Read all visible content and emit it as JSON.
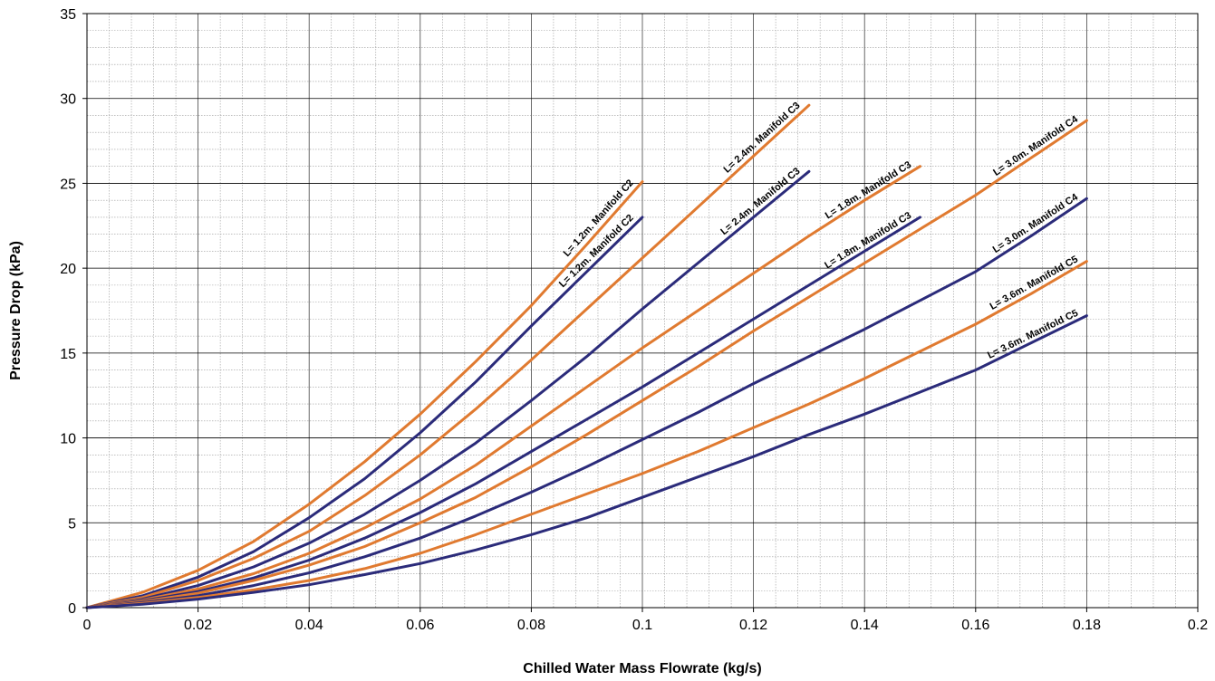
{
  "chart_data": {
    "type": "line",
    "title": "",
    "xlabel": "Chilled Water Mass Flowrate (kg/s)",
    "ylabel": "Pressure Drop (kPa)",
    "xlim": [
      0,
      0.2
    ],
    "ylim": [
      0,
      35
    ],
    "x_ticks": [
      "0",
      "0.02",
      "0.04",
      "0.06",
      "0.08",
      "0.1",
      "0.12",
      "0.14",
      "0.16",
      "0.18",
      "0.2"
    ],
    "y_ticks": [
      "0",
      "5",
      "10",
      "15",
      "20",
      "25",
      "30",
      "35"
    ],
    "grid": "major and minor",
    "legend": "none",
    "colors": {
      "orange": "#E07A30",
      "navy": "#2B2B7A"
    },
    "series": [
      {
        "name": "L= 1.2m. Manifold C2",
        "color": "#E07A30",
        "x": [
          0,
          0.01,
          0.02,
          0.03,
          0.04,
          0.05,
          0.06,
          0.07,
          0.08,
          0.09,
          0.1
        ],
        "y": [
          0,
          0.9,
          2.2,
          3.9,
          6.1,
          8.6,
          11.4,
          14.5,
          17.8,
          21.4,
          25.1
        ]
      },
      {
        "name": "L= 1.2m. Manifold C2",
        "color": "#2B2B7A",
        "x": [
          0,
          0.01,
          0.02,
          0.03,
          0.04,
          0.05,
          0.06,
          0.07,
          0.08,
          0.09,
          0.1
        ],
        "y": [
          0,
          0.7,
          1.8,
          3.3,
          5.3,
          7.6,
          10.3,
          13.3,
          16.6,
          19.8,
          23.0
        ]
      },
      {
        "name": "L= 2.4m. Manifold C3",
        "color": "#E07A30",
        "x": [
          0,
          0.01,
          0.02,
          0.03,
          0.04,
          0.05,
          0.06,
          0.07,
          0.08,
          0.09,
          0.1,
          0.11,
          0.12,
          0.13
        ],
        "y": [
          0,
          0.6,
          1.6,
          2.9,
          4.5,
          6.6,
          9.0,
          11.7,
          14.6,
          17.6,
          20.6,
          23.6,
          26.6,
          29.6
        ]
      },
      {
        "name": "L= 2.4m. Manifold C3",
        "color": "#2B2B7A",
        "x": [
          0,
          0.01,
          0.02,
          0.03,
          0.04,
          0.05,
          0.06,
          0.07,
          0.08,
          0.09,
          0.1,
          0.11,
          0.12,
          0.13
        ],
        "y": [
          0,
          0.5,
          1.3,
          2.4,
          3.8,
          5.5,
          7.5,
          9.7,
          12.2,
          14.8,
          17.6,
          20.3,
          23.0,
          25.7
        ]
      },
      {
        "name": "L= 1.8m. Manifold C3",
        "color": "#E07A30",
        "x": [
          0,
          0.01,
          0.02,
          0.03,
          0.04,
          0.05,
          0.06,
          0.07,
          0.08,
          0.09,
          0.1,
          0.11,
          0.12,
          0.13,
          0.14,
          0.15
        ],
        "y": [
          0,
          0.45,
          1.1,
          2.0,
          3.2,
          4.7,
          6.4,
          8.4,
          10.7,
          13.0,
          15.3,
          17.5,
          19.7,
          21.9,
          24.0,
          26.0
        ]
      },
      {
        "name": "L= 1.8m. Manifold C3",
        "color": "#2B2B7A",
        "x": [
          0,
          0.01,
          0.02,
          0.03,
          0.04,
          0.05,
          0.06,
          0.07,
          0.08,
          0.09,
          0.1,
          0.11,
          0.12,
          0.13,
          0.14,
          0.15
        ],
        "y": [
          0,
          0.4,
          0.95,
          1.75,
          2.8,
          4.1,
          5.6,
          7.3,
          9.2,
          11.1,
          13.0,
          15.0,
          17.0,
          19.0,
          21.0,
          23.0
        ]
      },
      {
        "name": "L= 3.0m. Manifold C4",
        "color": "#E07A30",
        "x": [
          0,
          0.01,
          0.02,
          0.03,
          0.04,
          0.05,
          0.06,
          0.07,
          0.08,
          0.09,
          0.1,
          0.11,
          0.12,
          0.13,
          0.14,
          0.15,
          0.16,
          0.17,
          0.18
        ],
        "y": [
          0,
          0.35,
          0.85,
          1.6,
          2.5,
          3.6,
          5.0,
          6.5,
          8.3,
          10.2,
          12.2,
          14.2,
          16.3,
          18.3,
          20.3,
          22.3,
          24.3,
          26.5,
          28.7
        ]
      },
      {
        "name": "L= 3.0m. Manifold C4",
        "color": "#2B2B7A",
        "x": [
          0,
          0.01,
          0.02,
          0.03,
          0.04,
          0.05,
          0.06,
          0.07,
          0.08,
          0.09,
          0.1,
          0.11,
          0.12,
          0.13,
          0.14,
          0.15,
          0.16,
          0.17,
          0.18
        ],
        "y": [
          0,
          0.3,
          0.7,
          1.3,
          2.05,
          3.0,
          4.1,
          5.4,
          6.8,
          8.3,
          9.9,
          11.5,
          13.2,
          14.8,
          16.4,
          18.1,
          19.8,
          21.9,
          24.1
        ]
      },
      {
        "name": "L= 3.6m. Manifold C5",
        "color": "#E07A30",
        "x": [
          0,
          0.01,
          0.02,
          0.03,
          0.04,
          0.05,
          0.06,
          0.07,
          0.08,
          0.09,
          0.1,
          0.11,
          0.12,
          0.13,
          0.14,
          0.15,
          0.16,
          0.17,
          0.18
        ],
        "y": [
          0,
          0.25,
          0.6,
          1.05,
          1.6,
          2.3,
          3.2,
          4.3,
          5.5,
          6.7,
          7.9,
          9.2,
          10.6,
          12.0,
          13.5,
          15.1,
          16.7,
          18.5,
          20.4
        ]
      },
      {
        "name": "L= 3.6m. Manifold C5",
        "color": "#2B2B7A",
        "x": [
          0,
          0.01,
          0.02,
          0.03,
          0.04,
          0.05,
          0.06,
          0.07,
          0.08,
          0.09,
          0.1,
          0.11,
          0.12,
          0.13,
          0.14,
          0.15,
          0.16,
          0.17,
          0.18
        ],
        "y": [
          0,
          0.2,
          0.5,
          0.9,
          1.35,
          1.95,
          2.6,
          3.4,
          4.3,
          5.3,
          6.5,
          7.7,
          8.9,
          10.2,
          11.4,
          12.7,
          14.0,
          15.6,
          17.2
        ]
      }
    ]
  }
}
